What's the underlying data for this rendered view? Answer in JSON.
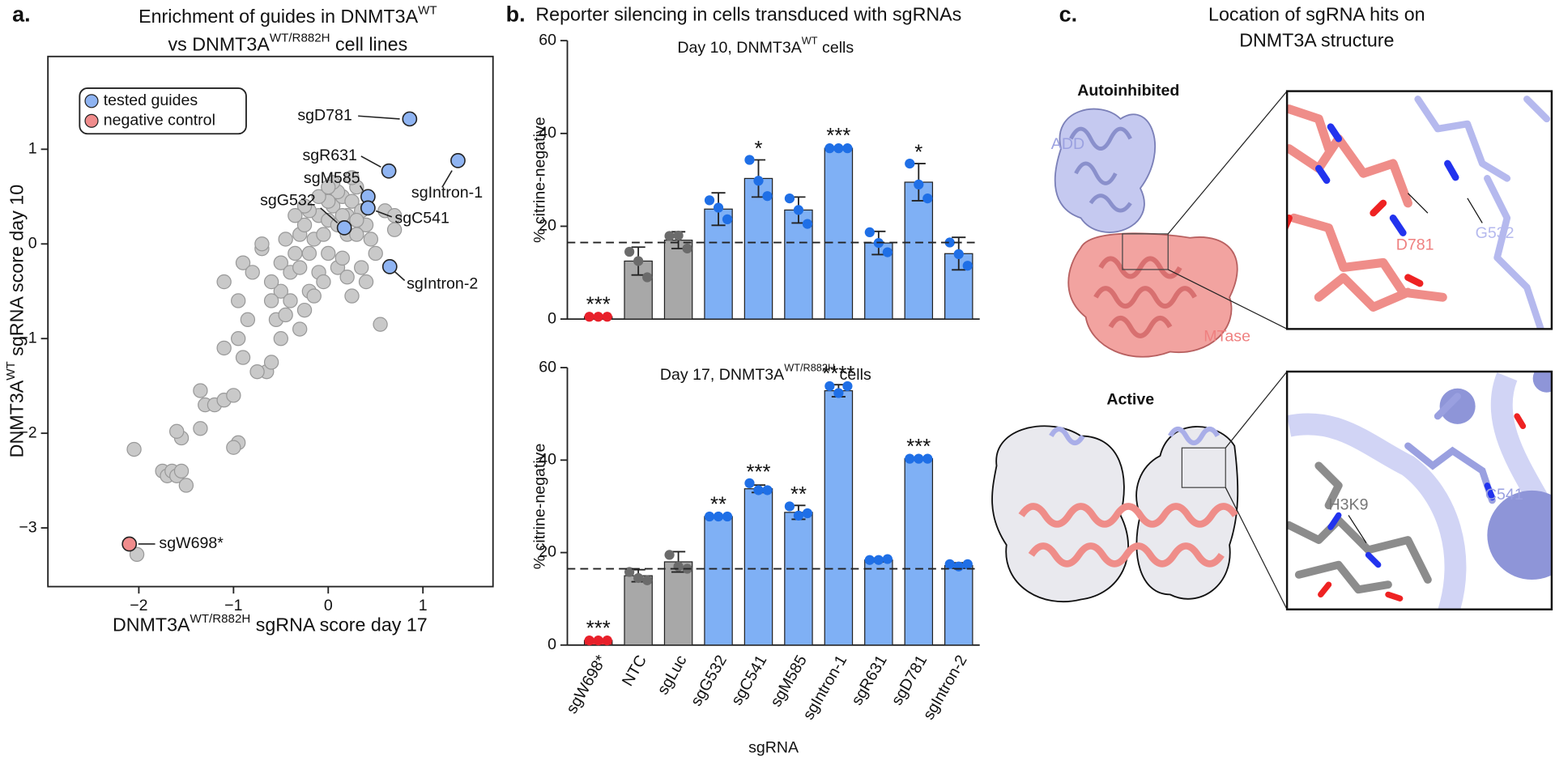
{
  "chart_data": [
    {
      "type": "scatter",
      "panel": "a.",
      "title": [
        [
          {
            "text": "Enrichment of guides in DNMT3A"
          },
          {
            "text": "WT",
            "sup": true
          }
        ],
        [
          {
            "text": "vs DNMT3A"
          },
          {
            "text": "WT/R882H",
            "sup": true
          },
          {
            "text": " cell lines"
          }
        ]
      ],
      "xlabel": [
        {
          "text": "DNMT3A"
        },
        {
          "text": "WT/R882H",
          "sup": true
        },
        {
          "text": " sgRNA score day 17"
        }
      ],
      "ylabel": [
        {
          "text": "DNMT3A"
        },
        {
          "text": "WT",
          "sup": true
        },
        {
          "text": " sgRNA score day 10"
        }
      ],
      "xlim": [
        -2.96,
        1.74
      ],
      "ylim": [
        -3.62,
        1.98
      ],
      "xticks": [
        {
          "value": -2,
          "label": "−2"
        },
        {
          "value": -1,
          "label": "−1"
        },
        0,
        1
      ],
      "yticks": [
        {
          "value": -3,
          "label": "−3"
        },
        {
          "value": -2,
          "label": "−2"
        },
        {
          "value": -1,
          "label": "−1"
        },
        0,
        1
      ],
      "legend": "upper left",
      "series": [
        {
          "name": "tested guides",
          "color": "#8fb4f2",
          "x": [
            0.86,
            1.37,
            0.64,
            0.42,
            0.42,
            0.17,
            0.65
          ],
          "y": [
            1.32,
            0.88,
            0.77,
            0.5,
            0.38,
            0.17,
            -0.24
          ],
          "labels": [
            "sgD781",
            "sgIntron-1",
            "sgR631",
            "sgM585",
            "sgC541",
            "sgG532",
            "sgIntron-2"
          ]
        },
        {
          "name": "negative control",
          "color": "#f08c8c",
          "x": [
            -2.1
          ],
          "y": [
            -3.17
          ],
          "labels": [
            "sgW698*"
          ]
        },
        {
          "color": "#c9c9c9",
          "x": [
            -2.05,
            -2.02,
            -1.75,
            -1.7,
            -1.65,
            -1.6,
            -1.55,
            -1.5,
            -1.55,
            -1.6,
            -1.35,
            -1.3,
            -1.2,
            -1.35,
            -1.1,
            -1.0,
            -0.95,
            -1.0,
            -1.1,
            -0.9,
            -0.85,
            -0.65,
            -0.95,
            -0.95,
            -0.75,
            -0.6,
            -0.5,
            -0.55,
            -1.1,
            -0.9,
            -0.7,
            -0.7,
            -0.5,
            -0.45,
            -0.4,
            -0.3,
            -0.2,
            -0.1,
            -0.6,
            -0.5,
            -0.4,
            -0.35,
            -0.3,
            -0.25,
            -0.2,
            -0.15,
            -0.1,
            -0.05,
            0,
            0.05,
            0.1,
            0.15,
            0.2,
            0.25,
            0.3,
            0.35,
            0.4,
            0.1,
            0.0,
            -0.1,
            -0.2,
            0.2,
            0.3,
            0.0,
            0.1,
            -0.05,
            0.2,
            0.45,
            0.5,
            0.55,
            0.25,
            0.15,
            -0.3,
            -0.25,
            0.6,
            0.7,
            0.05,
            0.25,
            -0.35,
            -0.15,
            -0.45,
            -0.6,
            -0.8,
            0.35,
            0.4,
            0.7,
            -0.25,
            0.0,
            0.15,
            0.3
          ],
          "y": [
            -2.17,
            -3.28,
            -2.4,
            -2.45,
            -2.4,
            -2.45,
            -2.4,
            -2.55,
            -2.05,
            -1.98,
            -1.95,
            -1.7,
            -1.7,
            -1.55,
            -1.65,
            -1.6,
            -2.1,
            -2.15,
            -1.1,
            -1.2,
            -0.8,
            -1.35,
            -0.6,
            -1.0,
            -1.35,
            -1.25,
            -1.0,
            -0.8,
            -0.4,
            -0.2,
            -0.05,
            0.0,
            -0.5,
            -0.75,
            -0.6,
            -0.9,
            -0.5,
            -0.3,
            -0.4,
            -0.2,
            -0.3,
            -0.1,
            0.1,
            0.2,
            -0.1,
            0.05,
            0.3,
            0.1,
            0.25,
            0.4,
            0.2,
            0.5,
            0.3,
            0.45,
            0.6,
            0.35,
            0.2,
            0.55,
            0.45,
            0.5,
            0.35,
            0.1,
            0.1,
            -0.1,
            -0.25,
            -0.4,
            -0.35,
            0.05,
            -0.1,
            -0.85,
            -0.55,
            -0.15,
            -0.25,
            0.4,
            0.35,
            0.3,
            0.65,
            0.7,
            0.3,
            -0.55,
            0.05,
            -0.6,
            -0.3,
            -0.25,
            -0.4,
            0.15,
            -0.7,
            0.6,
            0.3,
            0.25
          ]
        }
      ]
    },
    {
      "type": "bar",
      "panel": "b.",
      "title": "Reporter silencing in cells transduced with sgRNAs",
      "subtitle": [
        {
          "text": "Day 10, DNMT3A"
        },
        {
          "text": "WT",
          "sup": true
        },
        {
          "text": " cells"
        }
      ],
      "ylabel": "% citrine-negative",
      "ylim": [
        0,
        60
      ],
      "yticks": [
        0,
        20,
        40,
        60
      ],
      "hline": 16.5,
      "values": [
        0.5,
        12.5,
        17,
        23.7,
        30.3,
        23.5,
        36.8,
        16.4,
        29.5,
        14.1
      ],
      "errors": [
        0.2,
        3,
        1.8,
        3.5,
        4,
        2.8,
        0.3,
        2.5,
        4,
        3.5
      ],
      "replicates": [
        [
          0.5,
          0.5,
          0.5
        ],
        [
          14.5,
          12.5,
          9
        ],
        [
          17.9,
          18,
          15.2
        ],
        [
          25.6,
          24,
          21.5
        ],
        [
          34.3,
          29.8,
          26.5
        ],
        [
          26,
          23.5,
          20.5
        ],
        [
          36.8,
          36.8,
          36.8
        ],
        [
          18.7,
          16.4,
          14.4
        ],
        [
          33.5,
          29,
          26
        ],
        [
          16.5,
          14,
          11.5
        ]
      ],
      "annotations": [
        "***",
        null,
        null,
        null,
        "*",
        null,
        "***",
        null,
        "*",
        null
      ],
      "colors": [
        "#e8363b",
        "#a8a8a8",
        "#a8a8a8",
        "#7fb0f5",
        "#7fb0f5",
        "#7fb0f5",
        "#7fb0f5",
        "#7fb0f5",
        "#7fb0f5",
        "#7fb0f5"
      ],
      "dot_colors": [
        "#e8202a",
        "#6b6b6b",
        "#6b6b6b",
        "#1f6fe6",
        "#1f6fe6",
        "#1f6fe6",
        "#1f6fe6",
        "#1f6fe6",
        "#1f6fe6",
        "#1f6fe6"
      ]
    },
    {
      "type": "bar",
      "subtitle": [
        {
          "text": "Day 17, DNMT3A"
        },
        {
          "text": "WT/R882H",
          "sup": true
        },
        {
          "text": " cells"
        }
      ],
      "ylabel": "% citrine-negative",
      "xlabel": "sgRNA",
      "ylim": [
        0,
        60
      ],
      "yticks": [
        0,
        20,
        40,
        60
      ],
      "hline": 16.5,
      "categories": [
        "sgW698*",
        "NTC",
        "sgLuc",
        "sgG532",
        "sgC541",
        "sgM585",
        "sgIntron-1",
        "sgR631",
        "sgD781",
        "sgIntron-2"
      ],
      "values": [
        1,
        15,
        18,
        27.8,
        33.8,
        28.7,
        55,
        18.4,
        40.3,
        17.2
      ],
      "errors": [
        0.2,
        1.3,
        2.2,
        0.2,
        0.8,
        1.5,
        1.3,
        0.4,
        0.2,
        0.6
      ],
      "replicates": [
        [
          1,
          1,
          1
        ],
        [
          15.8,
          14.5,
          14
        ],
        [
          19.5,
          17,
          16.5
        ],
        [
          27.8,
          27.8,
          27.8
        ],
        [
          35,
          33.5,
          33.5
        ],
        [
          30,
          28,
          28.5
        ],
        [
          56,
          54.5,
          56
        ],
        [
          18.4,
          18.4,
          18.6
        ],
        [
          40.3,
          40.3,
          40.3
        ],
        [
          17.5,
          17,
          17.5
        ]
      ],
      "annotations": [
        "***",
        null,
        null,
        "**",
        "***",
        "**",
        "****",
        null,
        "***",
        null
      ],
      "colors": [
        "#e8363b",
        "#a8a8a8",
        "#a8a8a8",
        "#7fb0f5",
        "#7fb0f5",
        "#7fb0f5",
        "#7fb0f5",
        "#7fb0f5",
        "#7fb0f5",
        "#7fb0f5"
      ],
      "dot_colors": [
        "#e8202a",
        "#6b6b6b",
        "#6b6b6b",
        "#1f6fe6",
        "#1f6fe6",
        "#1f6fe6",
        "#1f6fe6",
        "#1f6fe6",
        "#1f6fe6",
        "#1f6fe6"
      ]
    }
  ],
  "structure": {
    "panel": "c.",
    "title": [
      "Location of sgRNA hits on",
      "DNMT3A structure"
    ],
    "autoinhibited": "Autoinhibited",
    "add": "ADD",
    "mtase": "MTase",
    "d781": "D781",
    "g532": "G532",
    "active": "Active",
    "h3k9": "H3K9",
    "c541": "C541"
  }
}
